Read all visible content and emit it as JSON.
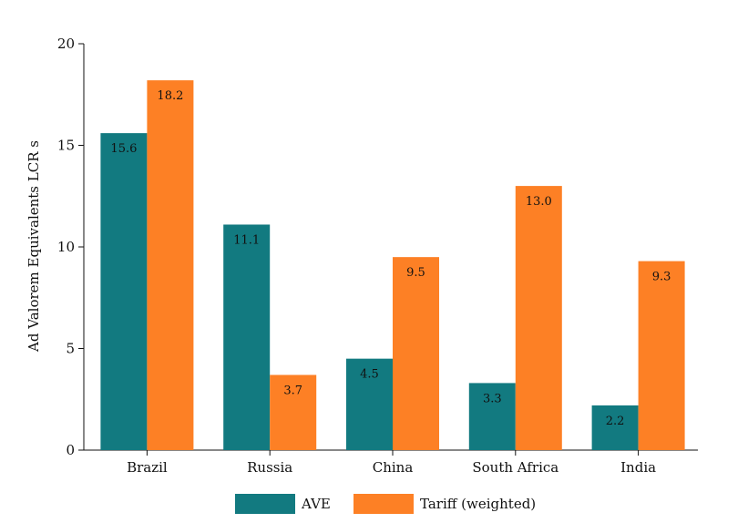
{
  "chart_data": {
    "type": "bar",
    "categories": [
      "Brazil",
      "Russia",
      "China",
      "South Africa",
      "India"
    ],
    "series": [
      {
        "name": "AVE",
        "values": [
          15.6,
          11.1,
          4.5,
          3.3,
          2.2
        ],
        "labels": [
          "15.6",
          "11.1",
          "4.5",
          "3.3",
          "2.2"
        ],
        "color": "#127a80"
      },
      {
        "name": "Tariff (weighted)",
        "values": [
          18.2,
          3.7,
          9.5,
          13.0,
          9.3
        ],
        "labels": [
          "18.2",
          "3.7",
          "9.5",
          "13.0",
          "9.3"
        ],
        "color": "#fd8025"
      }
    ],
    "ylabel": "Ad Valorem Equivalents LCR s",
    "ylim": [
      0,
      20
    ],
    "yticks": [
      0,
      5,
      10,
      15,
      20
    ],
    "ytick_labels": [
      "0",
      "5",
      "10",
      "15",
      "20"
    ],
    "grid": false,
    "legend_position": "bottom"
  }
}
